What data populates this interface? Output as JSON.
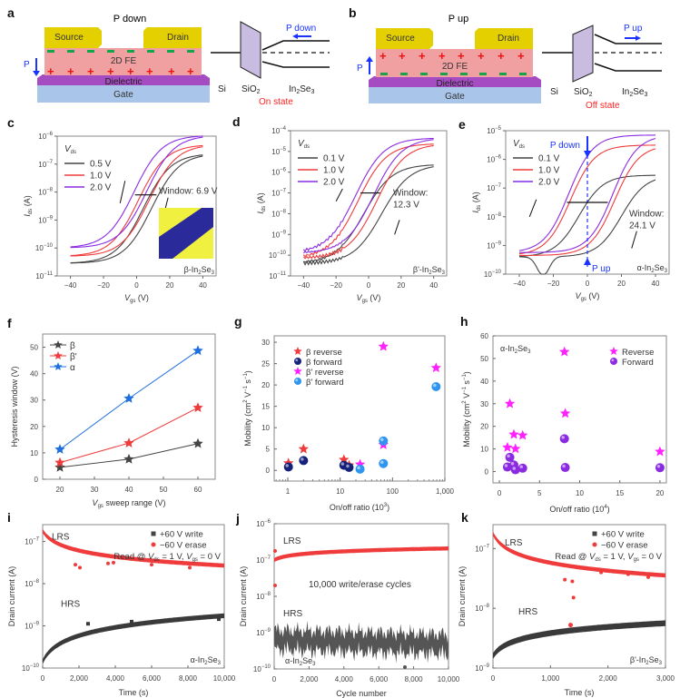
{
  "panels": {
    "a": {
      "letter": "a",
      "title": "P down",
      "source": "Source",
      "drain": "Drain",
      "layer_fe": "2D FE",
      "layer_dielectric": "Dielectric",
      "layer_gate": "Gate",
      "polarization_label": "P",
      "band_labels": [
        "Si",
        "SiO2",
        "In2Se3"
      ],
      "band_arrow_label": "P down",
      "state": "On state",
      "top_charges": "−",
      "bottom_charges": "+"
    },
    "b": {
      "letter": "b",
      "title": "P up",
      "source": "Source",
      "drain": "Drain",
      "layer_fe": "2D FE",
      "layer_dielectric": "Dielectric",
      "layer_gate": "Gate",
      "polarization_label": "P",
      "band_labels": [
        "Si",
        "SiO2",
        "In2Se3"
      ],
      "band_arrow_label": "P up",
      "state": "Off state",
      "top_charges": "+",
      "bottom_charges": "−"
    },
    "c": {
      "letter": "c",
      "window_label": "Window: 6.9 V",
      "material": "β-In2Se3",
      "legend_title": "Vds"
    },
    "d": {
      "letter": "d",
      "window_label": [
        "Window:",
        "12.3 V"
      ],
      "material": "β'-In2Se3",
      "legend_title": "Vds"
    },
    "e": {
      "letter": "e",
      "window_label": [
        "Window:",
        "24.1 V"
      ],
      "material": "α-In2Se3",
      "legend_title": "Vds",
      "p_down": "P down",
      "p_up": "P up"
    },
    "f": {
      "letter": "f"
    },
    "g": {
      "letter": "g"
    },
    "h": {
      "letter": "h",
      "material": "α-In2Se3"
    },
    "i": {
      "letter": "i",
      "lrs": "LRS",
      "hrs": "HRS",
      "read": "Read @ Vds = 1 V, Vgs = 0 V",
      "material": "α-In2Se3"
    },
    "j": {
      "letter": "j",
      "lrs": "LRS",
      "hrs": "HRS",
      "note": "10,000 write/erase cycles",
      "material": "α-In2Se3"
    },
    "k": {
      "letter": "k",
      "lrs": "LRS",
      "hrs": "HRS",
      "read": "Read @ Vds = 1 V, Vgs = 0 V",
      "material": "β'-In2Se3"
    }
  },
  "colors": {
    "gray": "#444444",
    "red": "#ef3b3b",
    "purple": "#8a2be2",
    "blue": "#1f6fe0",
    "navy": "#16227a",
    "magenta": "#ff22ff",
    "lightblue": "#2f95f0",
    "violet": "#8a2be2",
    "annotation_blue": "#1a33ff",
    "state_red": "#ff2222"
  },
  "chart_data": [
    {
      "id": "c",
      "type": "line",
      "xlabel": "Vgs (V)",
      "ylabel": "Ids (A)",
      "xlim": [
        -48,
        48
      ],
      "xticks": [
        -40,
        -20,
        0,
        20,
        40
      ],
      "ylim_log10": [
        -11,
        -6
      ],
      "yticks": [
        "10^-11",
        "10^-10",
        "10^-9",
        "10^-8",
        "10^-7",
        "10^-6"
      ],
      "legend_title": "Vds",
      "series": [
        {
          "name": "0.5 V",
          "color": "gray",
          "min_log": -10.55,
          "max_log": -6.62,
          "vth_fwd": 9.0,
          "vth_rev": 4.0,
          "slope": 0.12
        },
        {
          "name": "1.0 V",
          "color": "red",
          "min_log": -10.3,
          "max_log": -6.3,
          "vth_fwd": 7.5,
          "vth_rev": 1.0,
          "slope": 0.12
        },
        {
          "name": "2.0 V",
          "color": "purple",
          "min_log": -10.0,
          "max_log": -5.97,
          "vth_fwd": 6.0,
          "vth_rev": -1.5,
          "slope": 0.12
        }
      ],
      "annotation": "Window: 6.9 V",
      "material": "β-In2Se3"
    },
    {
      "id": "d",
      "type": "line",
      "xlabel": "Vgs (V)",
      "ylabel": "Ids (A)",
      "xlim": [
        -48,
        48
      ],
      "xticks": [
        -40,
        -20,
        0,
        20,
        40
      ],
      "ylim_log10": [
        -11,
        -4
      ],
      "yticks": [
        "10^-11",
        "10^-10",
        "10^-9",
        "10^-8",
        "10^-7",
        "10^-6",
        "10^-5",
        "10^-4"
      ],
      "legend_title": "Vds",
      "series": [
        {
          "name": "0.1 V",
          "color": "gray",
          "min_log": -10.4,
          "max_log": -5.62,
          "vth_fwd": 8.0,
          "vth_rev": -3.0,
          "slope": 0.115
        },
        {
          "name": "1.0 V",
          "color": "red",
          "min_log": -10.15,
          "max_log": -4.62,
          "vth_fwd": 5.0,
          "vth_rev": -6.5,
          "slope": 0.115
        },
        {
          "name": "2.0 V",
          "color": "purple",
          "min_log": -9.9,
          "max_log": -4.35,
          "vth_fwd": 3.0,
          "vth_rev": -8.0,
          "slope": 0.115
        }
      ],
      "annotation": "Window: 12.3 V",
      "material": "β'-In2Se3"
    },
    {
      "id": "e",
      "type": "line",
      "xlabel": "Vgs (V)",
      "ylabel": "Ids (A)",
      "xlim": [
        -48,
        48
      ],
      "xticks": [
        -40,
        -20,
        0,
        20,
        40
      ],
      "ylim_log10": [
        -10,
        -5
      ],
      "yticks": [
        "10^-10",
        "10^-9",
        "10^-8",
        "10^-7",
        "10^-6",
        "10^-5"
      ],
      "legend_title": "Vds",
      "series": [
        {
          "name": "0.1 V",
          "color": "gray",
          "min_log": -9.4,
          "max_log": -6.55,
          "vth_fwd": 20.0,
          "vth_rev": -5.0,
          "slope": 0.14
        },
        {
          "name": "1.0 V",
          "color": "red",
          "min_log": -9.35,
          "max_log": -5.5,
          "vth_fwd": 16.0,
          "vth_rev": -10.0,
          "slope": 0.14
        },
        {
          "name": "2.0 V",
          "color": "purple",
          "min_log": -9.25,
          "max_log": -5.15,
          "vth_fwd": 15.0,
          "vth_rev": -11.0,
          "slope": 0.14
        }
      ],
      "annotation": "Window: 24.1 V",
      "material": "α-In2Se3"
    },
    {
      "id": "f",
      "type": "line",
      "xlabel": "Vgs sweep range (V)",
      "ylabel": "Hysteresis window (V)",
      "xlim": [
        15,
        65
      ],
      "ylim": [
        0,
        55
      ],
      "xticks": [
        20,
        30,
        40,
        50,
        60
      ],
      "yticks": [
        0,
        10,
        20,
        30,
        40,
        50
      ],
      "x": [
        20,
        40,
        60
      ],
      "series": [
        {
          "name": "β",
          "color": "gray",
          "values": [
            4.5,
            7.6,
            13.5
          ]
        },
        {
          "name": "β'",
          "color": "red",
          "values": [
            6.3,
            13.7,
            27.1
          ]
        },
        {
          "name": "α",
          "color": "blue",
          "values": [
            11.3,
            30.6,
            48.7
          ]
        }
      ],
      "legend": "top-left",
      "marker": "star"
    },
    {
      "id": "g",
      "type": "scatter",
      "xlabel": "On/off ratio (10^3)",
      "ylabel": "Mobility (cm2 V-1 s-1)",
      "xscale": "log",
      "xlim": [
        0.55,
        1000
      ],
      "ylim": [
        -2.5,
        31.5
      ],
      "xticks": [
        "1",
        "10",
        "100",
        "1,000"
      ],
      "yticks": [
        0,
        5,
        10,
        15,
        20,
        25,
        30
      ],
      "series": [
        {
          "name": "β reverse",
          "color": "red",
          "marker": "star",
          "points": [
            [
              1.03,
              1.7
            ],
            [
              2.0,
              5.0
            ],
            [
              11.8,
              2.5
            ],
            [
              14.8,
              1.2
            ]
          ]
        },
        {
          "name": "β forward",
          "color": "navy",
          "marker": "ball",
          "points": [
            [
              1.03,
              0.8
            ],
            [
              2.0,
              2.3
            ],
            [
              11.8,
              1.2
            ],
            [
              14.8,
              0.7
            ]
          ]
        },
        {
          "name": "β' reverse",
          "color": "magenta",
          "marker": "star",
          "points": [
            [
              24,
              1.4
            ],
            [
              67,
              29.0
            ],
            [
              67,
              6.0
            ],
            [
              680,
              24.0
            ]
          ]
        },
        {
          "name": "β' forward",
          "color": "lightblue",
          "marker": "ball",
          "points": [
            [
              24,
              0.3
            ],
            [
              67,
              6.9
            ],
            [
              67,
              1.6
            ],
            [
              680,
              19.6
            ]
          ]
        }
      ],
      "legend": "top-left"
    },
    {
      "id": "h",
      "type": "scatter",
      "xlabel": "On/off ratio (10^4)",
      "ylabel": "Mobility (cm2 V-1 s-1)",
      "xlim": [
        -0.8,
        20.8
      ],
      "ylim": [
        -5,
        60
      ],
      "xticks": [
        0,
        5,
        10,
        15,
        20
      ],
      "yticks": [
        0,
        10,
        20,
        30,
        40,
        50,
        60
      ],
      "series": [
        {
          "name": "Reverse",
          "color": "magenta",
          "marker": "star",
          "points": [
            [
              1.0,
              10.7
            ],
            [
              1.3,
              30.0
            ],
            [
              1.8,
              16.4
            ],
            [
              2.0,
              10.1
            ],
            [
              2.9,
              16.0
            ],
            [
              8.1,
              52.9
            ],
            [
              8.2,
              25.7
            ],
            [
              20.0,
              8.8
            ]
          ]
        },
        {
          "name": "Forward",
          "color": "violet",
          "marker": "ball",
          "points": [
            [
              1.0,
              2.0
            ],
            [
              1.3,
              6.3
            ],
            [
              1.8,
              2.9
            ],
            [
              2.0,
              0.8
            ],
            [
              2.9,
              1.5
            ],
            [
              8.1,
              14.5
            ],
            [
              8.2,
              1.8
            ],
            [
              20.0,
              1.7
            ]
          ]
        }
      ],
      "legend": "top-right",
      "annotation": "α-In2Se3"
    },
    {
      "id": "i",
      "type": "scatter",
      "xlabel": "Time (s)",
      "ylabel": "Drain current (A)",
      "xlim": [
        0,
        10000
      ],
      "ylim_log10": [
        -10,
        -6.6
      ],
      "xticks": [
        "0",
        "2,000",
        "4,000",
        "6,000",
        "8,000",
        "10,000"
      ],
      "yticks": [
        "10^-10",
        "10^-9",
        "10^-8",
        "10^-7"
      ],
      "series": [
        {
          "name": "+60 V write",
          "color": "gray",
          "state": "HRS",
          "start_log": -9.85,
          "end_log": -8.76
        },
        {
          "name": "−60 V erase",
          "color": "red",
          "state": "LRS",
          "start_log": -6.75,
          "end_log": -7.57
        }
      ],
      "legend": "top-right"
    },
    {
      "id": "j",
      "type": "scatter",
      "xlabel": "Cycle number",
      "ylabel": "Drain current (A)",
      "xlim": [
        0,
        10000
      ],
      "ylim_log10": [
        -10,
        -6
      ],
      "xticks": [
        "0",
        "2,000",
        "4,000",
        "6,000",
        "8,000",
        "10,000"
      ],
      "yticks": [
        "10^-10",
        "10^-9",
        "10^-8",
        "10^-7",
        "10^-6"
      ],
      "series": [
        {
          "name": "LRS",
          "color": "red",
          "start_log": -7.0,
          "end_log": -6.68
        },
        {
          "name": "HRS",
          "color": "gray",
          "mean_log": -9.1,
          "noise": 0.3
        }
      ]
    },
    {
      "id": "k",
      "type": "scatter",
      "xlabel": "Time (s)",
      "ylabel": "Drain current (A)",
      "xlim": [
        0,
        3000
      ],
      "ylim_log10": [
        -9,
        -6.6
      ],
      "xticks": [
        "0",
        "1,000",
        "2,000",
        "3,000"
      ],
      "yticks": [
        "10^-9",
        "10^-8",
        "10^-7"
      ],
      "series": [
        {
          "name": "+60 V write",
          "color": "gray",
          "state": "HRS",
          "start_log": -8.8,
          "end_log": -8.25
        },
        {
          "name": "−60 V erase",
          "color": "red",
          "state": "LRS",
          "start_log": -6.75,
          "end_log": -7.45
        }
      ],
      "legend": "top-right"
    }
  ]
}
